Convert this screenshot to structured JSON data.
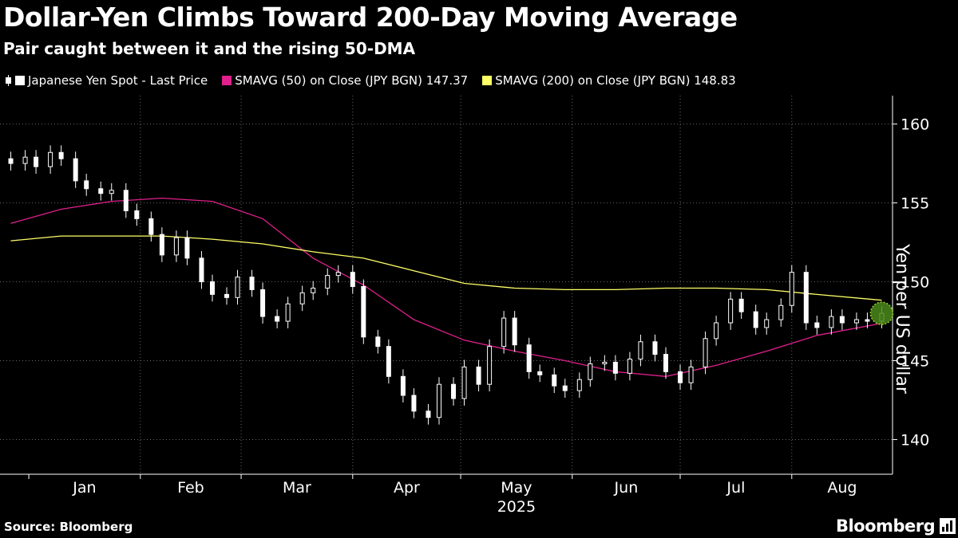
{
  "header": {
    "title": "Dollar-Yen Climbs Toward 200-Day Moving Average",
    "subtitle": "Pair caught between it and the rising 50-DMA"
  },
  "legend": {
    "spot": "Japanese Yen Spot - Last Price",
    "sma50": "SMAVG (50)  on Close (JPY BGN) 147.37",
    "sma200": "SMAVG (200)  on Close (JPY BGN) 148.83"
  },
  "footer": {
    "source": "Source: Bloomberg",
    "brand": "Bloomberg"
  },
  "colors": {
    "background": "#000000",
    "candles": "#ffffff",
    "sma50": "#e0208c",
    "sma200": "#ffff66",
    "grid": "#666666",
    "highlight": "#4a8a1a"
  },
  "chart_data": {
    "type": "candlestick",
    "title": "Dollar-Yen Climbs Toward 200-Day Moving Average",
    "subtitle": "Pair caught between it and the rising 50-DMA",
    "ylabel": "Yen per US dollar",
    "year_label": "2025",
    "ylim": [
      137.8,
      161.8
    ],
    "yticks": [
      140,
      145,
      150,
      155,
      160
    ],
    "grid": true,
    "legend_position": "top-left",
    "x_months": [
      "Jan",
      "Feb",
      "Mar",
      "Apr",
      "May",
      "Jun",
      "Jul",
      "Aug"
    ],
    "series": [
      {
        "name": "Japanese Yen Spot - Last Price",
        "kind": "daily close (candles)",
        "x": [
          "2024-12-27",
          "2024-12-31",
          "2025-01-03",
          "2025-01-07",
          "2025-01-10",
          "2025-01-14",
          "2025-01-17",
          "2025-01-21",
          "2025-01-24",
          "2025-01-28",
          "2025-01-31",
          "2025-02-04",
          "2025-02-07",
          "2025-02-11",
          "2025-02-14",
          "2025-02-18",
          "2025-02-21",
          "2025-02-25",
          "2025-02-28",
          "2025-03-04",
          "2025-03-07",
          "2025-03-11",
          "2025-03-14",
          "2025-03-18",
          "2025-03-21",
          "2025-03-25",
          "2025-03-28",
          "2025-04-01",
          "2025-04-04",
          "2025-04-08",
          "2025-04-11",
          "2025-04-15",
          "2025-04-18",
          "2025-04-22",
          "2025-04-25",
          "2025-04-29",
          "2025-05-02",
          "2025-05-06",
          "2025-05-09",
          "2025-05-13",
          "2025-05-16",
          "2025-05-20",
          "2025-05-23",
          "2025-05-27",
          "2025-05-30",
          "2025-06-03",
          "2025-06-06",
          "2025-06-10",
          "2025-06-13",
          "2025-06-17",
          "2025-06-20",
          "2025-06-24",
          "2025-06-27",
          "2025-07-01",
          "2025-07-04",
          "2025-07-08",
          "2025-07-11",
          "2025-07-15",
          "2025-07-18",
          "2025-07-22",
          "2025-07-25",
          "2025-07-29",
          "2025-08-01",
          "2025-08-05",
          "2025-08-08",
          "2025-08-12",
          "2025-08-15",
          "2025-08-19",
          "2025-08-22",
          "2025-08-26"
        ],
        "y": [
          157.5,
          157.9,
          157.3,
          158.2,
          157.8,
          156.4,
          155.9,
          155.6,
          155.8,
          154.5,
          154.0,
          153.0,
          151.7,
          152.8,
          151.5,
          150.0,
          149.2,
          149.0,
          150.3,
          149.5,
          147.8,
          147.5,
          148.6,
          149.3,
          149.6,
          150.4,
          150.6,
          149.7,
          146.5,
          145.9,
          144.0,
          142.8,
          141.8,
          141.4,
          143.5,
          142.6,
          144.6,
          143.5,
          145.9,
          147.7,
          146.0,
          144.3,
          144.1,
          143.4,
          143.1,
          143.8,
          144.8,
          144.9,
          144.2,
          145.1,
          146.2,
          145.4,
          144.3,
          143.6,
          144.6,
          146.4,
          147.4,
          148.9,
          148.1,
          147.1,
          147.6,
          148.5,
          150.6,
          147.4,
          147.1,
          147.8,
          147.4,
          147.6,
          147.5,
          148.0
        ]
      },
      {
        "name": "SMAVG (50)  on Close (JPY BGN)",
        "last_value": 147.37,
        "x": [
          "2024-12-27",
          "2025-01-10",
          "2025-01-24",
          "2025-02-07",
          "2025-02-21",
          "2025-03-07",
          "2025-03-21",
          "2025-04-04",
          "2025-04-18",
          "2025-05-02",
          "2025-05-16",
          "2025-05-30",
          "2025-06-13",
          "2025-06-27",
          "2025-07-11",
          "2025-07-25",
          "2025-08-08",
          "2025-08-26"
        ],
        "y": [
          153.7,
          154.6,
          155.1,
          155.3,
          155.1,
          154.0,
          151.5,
          149.8,
          147.6,
          146.3,
          145.6,
          145.0,
          144.3,
          144.0,
          144.7,
          145.6,
          146.6,
          147.37
        ]
      },
      {
        "name": "SMAVG (200)  on Close (JPY BGN)",
        "last_value": 148.83,
        "x": [
          "2024-12-27",
          "2025-01-10",
          "2025-01-24",
          "2025-02-07",
          "2025-02-21",
          "2025-03-07",
          "2025-03-21",
          "2025-04-04",
          "2025-04-18",
          "2025-05-02",
          "2025-05-16",
          "2025-05-30",
          "2025-06-13",
          "2025-06-27",
          "2025-07-11",
          "2025-07-25",
          "2025-08-08",
          "2025-08-26"
        ],
        "y": [
          152.6,
          152.9,
          152.9,
          152.9,
          152.7,
          152.4,
          151.9,
          151.5,
          150.7,
          149.9,
          149.6,
          149.5,
          149.5,
          149.6,
          149.6,
          149.5,
          149.2,
          148.83
        ]
      }
    ],
    "highlight": {
      "x": "2025-08-26",
      "y": 148.0,
      "note": "latest price marker"
    }
  }
}
